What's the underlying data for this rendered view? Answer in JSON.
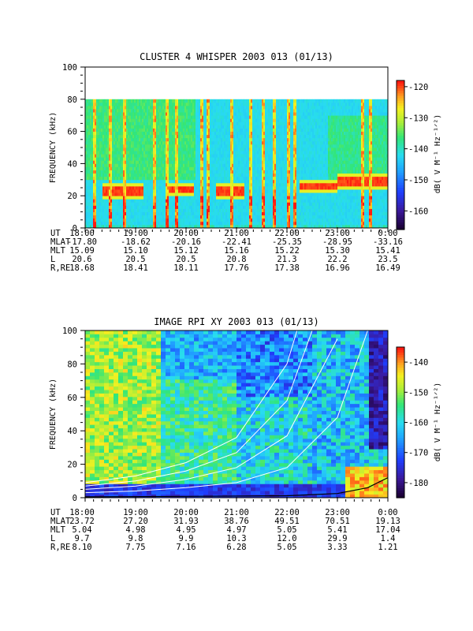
{
  "chart_data": [
    {
      "type": "heatmap",
      "title": "CLUSTER 4 WHISPER 2003 013 (01/13)",
      "ylabel": "FREQUENCY (kHz)",
      "ylim": [
        0,
        100
      ],
      "yticks": [
        "0",
        "20",
        "40",
        "60",
        "80",
        "100"
      ],
      "xlim": [
        "18:00",
        "0:00"
      ],
      "colorbar": {
        "label": "dB( V M⁻¹ Hz⁻¹ᐟ²)",
        "ticks": [
          "-120",
          "-130",
          "-140",
          "-150",
          "-160"
        ],
        "range": [
          -166,
          -118
        ]
      },
      "data_extent_khz": [
        0,
        80
      ],
      "ephemeris": {
        "rows": [
          {
            "label": "UT",
            "values": [
              "18:00",
              "19:00",
              "20:00",
              "21:00",
              "22:00",
              "23:00",
              "0:00"
            ]
          },
          {
            "label": "MLAT",
            "values": [
              "-17.80",
              "-18.62",
              "-20.16",
              "-22.41",
              "-25.35",
              "-28.95",
              "-33.16"
            ]
          },
          {
            "label": "MLT",
            "values": [
              "15.09",
              "15.10",
              "15.12",
              "15.16",
              "15.22",
              "15.30",
              "15.41"
            ]
          },
          {
            "label": "L",
            "values": [
              "20.6",
              "20.5",
              "20.5",
              "20.8",
              "21.3",
              "22.2",
              "23.5"
            ]
          },
          {
            "label": "R,RE",
            "values": [
              "18.68",
              "18.41",
              "18.11",
              "17.76",
              "17.38",
              "16.96",
              "16.49"
            ]
          }
        ]
      },
      "features": {
        "red_emission_band_khz": [
          {
            "from": "18:20",
            "to": "19:10",
            "freq": 23
          },
          {
            "from": "19:40",
            "to": "20:10",
            "freq": 24
          },
          {
            "from": "20:35",
            "to": "21:10",
            "freq": 23
          },
          {
            "from": "22:15",
            "to": "23:00",
            "freq": 26
          },
          {
            "from": "23:00",
            "to": "0:00",
            "freq": 29
          }
        ],
        "vertical_bursts": [
          "18:12",
          "18:30",
          "18:47",
          "19:22",
          "19:38",
          "19:48",
          "20:18",
          "20:26",
          "20:55",
          "21:17",
          "21:32",
          "21:45",
          "22:02",
          "22:10",
          "23:30",
          "23:40"
        ]
      }
    },
    {
      "type": "heatmap",
      "title": "IMAGE RPI XY 2003 013 (01/13)",
      "ylabel": "FREQUENCY (kHz)",
      "ylim": [
        0,
        100
      ],
      "yticks": [
        "0",
        "20",
        "40",
        "60",
        "80",
        "100"
      ],
      "xlim": [
        "18:00",
        "0:00"
      ],
      "colorbar": {
        "label": "dB( V M⁻¹ Hz⁻¹ᐟ²)",
        "ticks": [
          "-140",
          "-150",
          "-160",
          "-170",
          "-180"
        ],
        "range": [
          -185,
          -135
        ]
      },
      "ephemeris": {
        "rows": [
          {
            "label": "UT",
            "values": [
              "18:00",
              "19:00",
              "20:00",
              "21:00",
              "22:00",
              "23:00",
              "0:00"
            ]
          },
          {
            "label": "MLAT",
            "values": [
              "23.72",
              "27.20",
              "31.93",
              "38.76",
              "49.51",
              "70.51",
              "19.13"
            ]
          },
          {
            "label": "MLT",
            "values": [
              "5.04",
              "4.98",
              "4.95",
              "4.97",
              "5.05",
              "5.41",
              "17.04"
            ]
          },
          {
            "label": "L",
            "values": [
              "9.7",
              "9.8",
              "9.9",
              "10.3",
              "12.0",
              "29.9",
              "1.4"
            ]
          },
          {
            "label": "R,RE",
            "values": [
              "8.10",
              "7.75",
              "7.16",
              "6.28",
              "5.05",
              "3.33",
              "1.21"
            ]
          }
        ]
      },
      "features": {
        "white_curves_khz_at_hour": [
          [
            [
              0,
              3
            ],
            [
              1,
              4
            ],
            [
              2,
              6
            ],
            [
              3,
              9
            ],
            [
              4,
              18
            ],
            [
              5,
              48
            ],
            [
              5.6,
              100
            ]
          ],
          [
            [
              0,
              5
            ],
            [
              1,
              7
            ],
            [
              2,
              11
            ],
            [
              3,
              18
            ],
            [
              4,
              37
            ],
            [
              5,
              95
            ]
          ],
          [
            [
              0,
              7
            ],
            [
              1,
              10
            ],
            [
              2,
              16
            ],
            [
              3,
              27
            ],
            [
              4,
              58
            ],
            [
              4.5,
              100
            ]
          ],
          [
            [
              0,
              9
            ],
            [
              1,
              13
            ],
            [
              2,
              21
            ],
            [
              3,
              36
            ],
            [
              4,
              80
            ],
            [
              4.2,
              100
            ]
          ]
        ],
        "black_trace_khz_at_hour": [
          [
            0,
            0.5
          ],
          [
            2,
            0.8
          ],
          [
            4,
            1.2
          ],
          [
            5,
            2.5
          ],
          [
            5.6,
            6
          ],
          [
            6,
            12
          ]
        ]
      }
    }
  ]
}
